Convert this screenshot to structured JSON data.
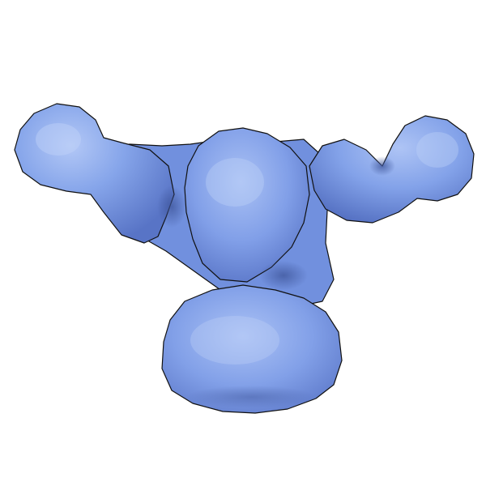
{
  "scene": {
    "background_color": "#ffffff",
    "surface_color": "#7e9ee8",
    "surface_highlight_color": "#a9c0f4",
    "surface_shadow_color": "#4a64b0",
    "outline_color": "#111111",
    "subject": "blue-blob-molecular-surface"
  }
}
